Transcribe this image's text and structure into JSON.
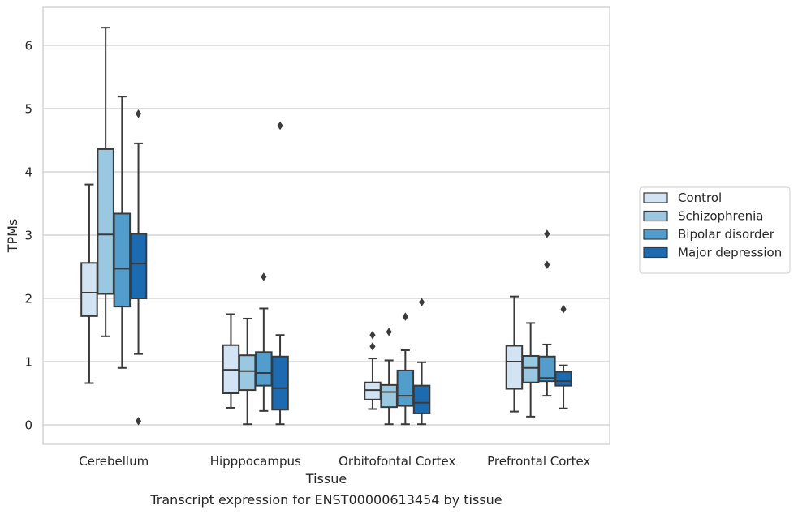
{
  "chart_data": {
    "type": "box",
    "caption": "Transcript expression for ENST00000613454 by tissue",
    "xlabel": "Tissue",
    "ylabel": "TPMs",
    "ylim": [
      -0.3,
      6.6
    ],
    "yticks": [
      0,
      1,
      2,
      3,
      4,
      5,
      6
    ],
    "grid": "horizontal",
    "legend_position": "right",
    "categories": [
      "Cerebellum",
      "Hipppocampus",
      "Orbitofontal Cortex",
      "Prefrontal Cortex"
    ],
    "series": [
      {
        "name": "Control",
        "color": "#d2e3f3",
        "boxes": [
          {
            "whislo": 0.66,
            "q1": 1.72,
            "med": 2.09,
            "q3": 2.56,
            "whishi": 3.8,
            "fliers": []
          },
          {
            "whislo": 0.27,
            "q1": 0.5,
            "med": 0.87,
            "q3": 1.26,
            "whishi": 1.75,
            "fliers": []
          },
          {
            "whislo": 0.25,
            "q1": 0.4,
            "med": 0.55,
            "q3": 0.67,
            "whishi": 1.05,
            "fliers": [
              1.24,
              1.42
            ]
          },
          {
            "whislo": 0.21,
            "q1": 0.57,
            "med": 1.0,
            "q3": 1.25,
            "whishi": 2.03,
            "fliers": []
          }
        ]
      },
      {
        "name": "Schizophrenia",
        "color": "#9ac8e0",
        "boxes": [
          {
            "whislo": 1.4,
            "q1": 2.07,
            "med": 3.01,
            "q3": 4.36,
            "whishi": 6.28,
            "fliers": []
          },
          {
            "whislo": 0.01,
            "q1": 0.55,
            "med": 0.85,
            "q3": 1.1,
            "whishi": 1.68,
            "fliers": []
          },
          {
            "whislo": 0.01,
            "q1": 0.28,
            "med": 0.52,
            "q3": 0.63,
            "whishi": 1.02,
            "fliers": [
              1.47
            ]
          },
          {
            "whislo": 0.13,
            "q1": 0.67,
            "med": 0.9,
            "q3": 1.09,
            "whishi": 1.61,
            "fliers": []
          }
        ]
      },
      {
        "name": "Bipolar disorder",
        "color": "#529dcc",
        "boxes": [
          {
            "whislo": 0.9,
            "q1": 1.87,
            "med": 2.47,
            "q3": 3.34,
            "whishi": 5.19,
            "fliers": []
          },
          {
            "whislo": 0.22,
            "q1": 0.62,
            "med": 0.82,
            "q3": 1.15,
            "whishi": 1.84,
            "fliers": [
              2.34
            ]
          },
          {
            "whislo": 0.01,
            "q1": 0.3,
            "med": 0.46,
            "q3": 0.86,
            "whishi": 1.18,
            "fliers": [
              1.71
            ]
          },
          {
            "whislo": 0.46,
            "q1": 0.69,
            "med": 0.74,
            "q3": 1.08,
            "whishi": 1.27,
            "fliers": [
              2.53,
              3.02
            ]
          }
        ]
      },
      {
        "name": "Major depression",
        "color": "#1c6aaf",
        "boxes": [
          {
            "whislo": 1.12,
            "q1": 2.0,
            "med": 2.55,
            "q3": 3.02,
            "whishi": 4.45,
            "fliers": [
              4.92,
              0.06
            ]
          },
          {
            "whislo": 0.01,
            "q1": 0.24,
            "med": 0.58,
            "q3": 1.08,
            "whishi": 1.42,
            "fliers": [
              4.73
            ]
          },
          {
            "whislo": 0.01,
            "q1": 0.18,
            "med": 0.35,
            "q3": 0.62,
            "whishi": 0.99,
            "fliers": [
              1.94
            ]
          },
          {
            "whislo": 0.26,
            "q1": 0.62,
            "med": 0.69,
            "q3": 0.84,
            "whishi": 0.94,
            "fliers": [
              1.83
            ]
          }
        ]
      }
    ]
  }
}
